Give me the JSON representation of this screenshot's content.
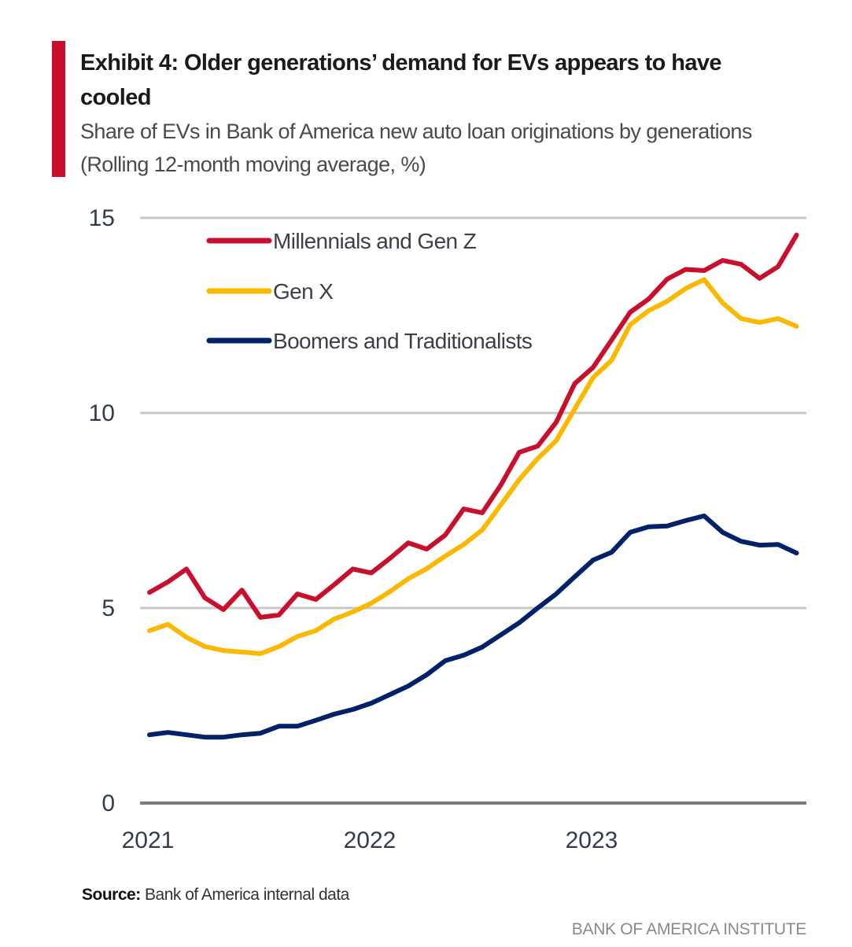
{
  "header": {
    "title": "Exhibit 4: Older generations’ demand for EVs appears to have cooled",
    "subtitle": "Share of EVs in Bank of America new auto loan originations by generations (Rolling 12-month moving average, %)"
  },
  "footer": {
    "source_label": "Source:",
    "source_text": " Bank of America internal data",
    "brand": "BANK OF AMERICA INSTITUTE"
  },
  "colors": {
    "accent": "#c8102e",
    "millennials": "#c8102e",
    "genx": "#fbb800",
    "boomers": "#012169",
    "grid": "#c8c8c8",
    "axis": "#7a7a7a"
  },
  "chart_data": {
    "type": "line",
    "title": "Exhibit 4: Older generations’ demand for EVs appears to have cooled",
    "subtitle": "Share of EVs in Bank of America new auto loan originations by generations (Rolling 12-month moving average, %)",
    "xlabel": "",
    "ylabel": "",
    "frequency": "monthly",
    "x_start": "2021-01",
    "x_end": "2023-12",
    "x_tick_labels": [
      "2021",
      "2022",
      "2023"
    ],
    "y_ticks": [
      0,
      5,
      10,
      15
    ],
    "ylim": [
      0,
      15
    ],
    "grid": "horizontal",
    "legend_position": "top-left",
    "series": [
      {
        "name": "Millennials and Gen Z",
        "color": "#c8102e",
        "values": [
          5.4,
          5.67,
          6.0,
          5.26,
          4.96,
          5.46,
          4.76,
          4.82,
          5.36,
          5.22,
          5.6,
          6.0,
          5.9,
          6.27,
          6.67,
          6.51,
          6.87,
          7.54,
          7.44,
          8.15,
          8.99,
          9.15,
          9.76,
          10.75,
          11.17,
          11.87,
          12.58,
          12.92,
          13.43,
          13.68,
          13.65,
          13.91,
          13.81,
          13.45,
          13.75,
          14.56
        ]
      },
      {
        "name": "Gen X",
        "color": "#fbb800",
        "values": [
          4.42,
          4.58,
          4.25,
          4.01,
          3.91,
          3.87,
          3.83,
          4.01,
          4.27,
          4.42,
          4.72,
          4.9,
          5.12,
          5.42,
          5.75,
          6.01,
          6.33,
          6.63,
          7.0,
          7.64,
          8.29,
          8.83,
          9.29,
          10.1,
          10.91,
          11.35,
          12.26,
          12.62,
          12.86,
          13.19,
          13.42,
          12.82,
          12.42,
          12.32,
          12.42,
          12.22
        ]
      },
      {
        "name": "Boomers and Traditionalists",
        "color": "#012169",
        "values": [
          1.75,
          1.81,
          1.75,
          1.69,
          1.69,
          1.75,
          1.79,
          1.97,
          1.97,
          2.12,
          2.28,
          2.4,
          2.56,
          2.78,
          3.0,
          3.29,
          3.65,
          3.79,
          4.0,
          4.31,
          4.62,
          5.0,
          5.36,
          5.8,
          6.23,
          6.43,
          6.94,
          7.08,
          7.1,
          7.24,
          7.36,
          6.94,
          6.71,
          6.61,
          6.63,
          6.41
        ]
      }
    ]
  }
}
